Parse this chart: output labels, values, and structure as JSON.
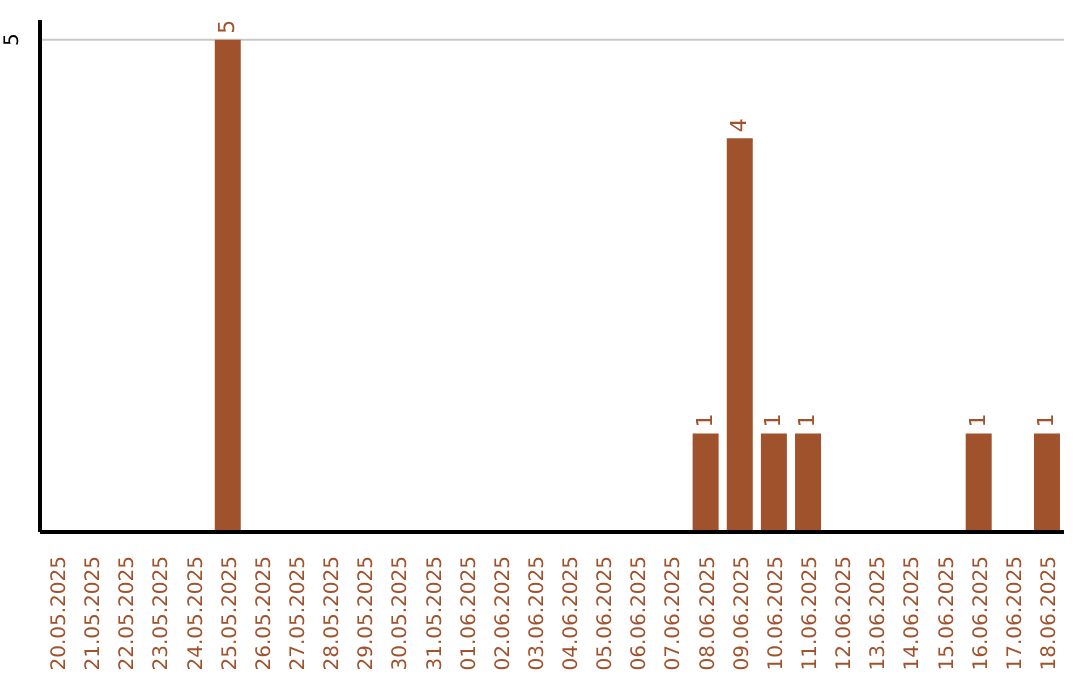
{
  "chart_data": {
    "type": "bar",
    "categories": [
      "20.05.2025",
      "21.05.2025",
      "22.05.2025",
      "23.05.2025",
      "24.05.2025",
      "25.05.2025",
      "26.05.2025",
      "27.05.2025",
      "28.05.2025",
      "29.05.2025",
      "30.05.2025",
      "31.05.2025",
      "01.06.2025",
      "02.06.2025",
      "03.06.2025",
      "04.06.2025",
      "05.06.2025",
      "06.06.2025",
      "07.06.2025",
      "08.06.2025",
      "09.06.2025",
      "10.06.2025",
      "11.06.2025",
      "12.06.2025",
      "13.06.2025",
      "14.06.2025",
      "15.06.2025",
      "16.06.2025",
      "17.06.2025",
      "18.06.2025"
    ],
    "values": [
      0,
      0,
      0,
      0,
      0,
      5,
      0,
      0,
      0,
      0,
      0,
      0,
      0,
      0,
      0,
      0,
      0,
      0,
      0,
      1,
      4,
      1,
      1,
      0,
      0,
      0,
      0,
      1,
      0,
      1
    ],
    "value_labels": [
      null,
      null,
      null,
      null,
      null,
      "5",
      null,
      null,
      null,
      null,
      null,
      null,
      null,
      null,
      null,
      null,
      null,
      null,
      null,
      "1",
      "4",
      "1",
      "1",
      null,
      null,
      null,
      null,
      "1",
      null,
      "1"
    ],
    "color": "#a0522d",
    "ylim": [
      0,
      5.2
    ],
    "yticks": [
      5
    ],
    "grid": "y"
  }
}
